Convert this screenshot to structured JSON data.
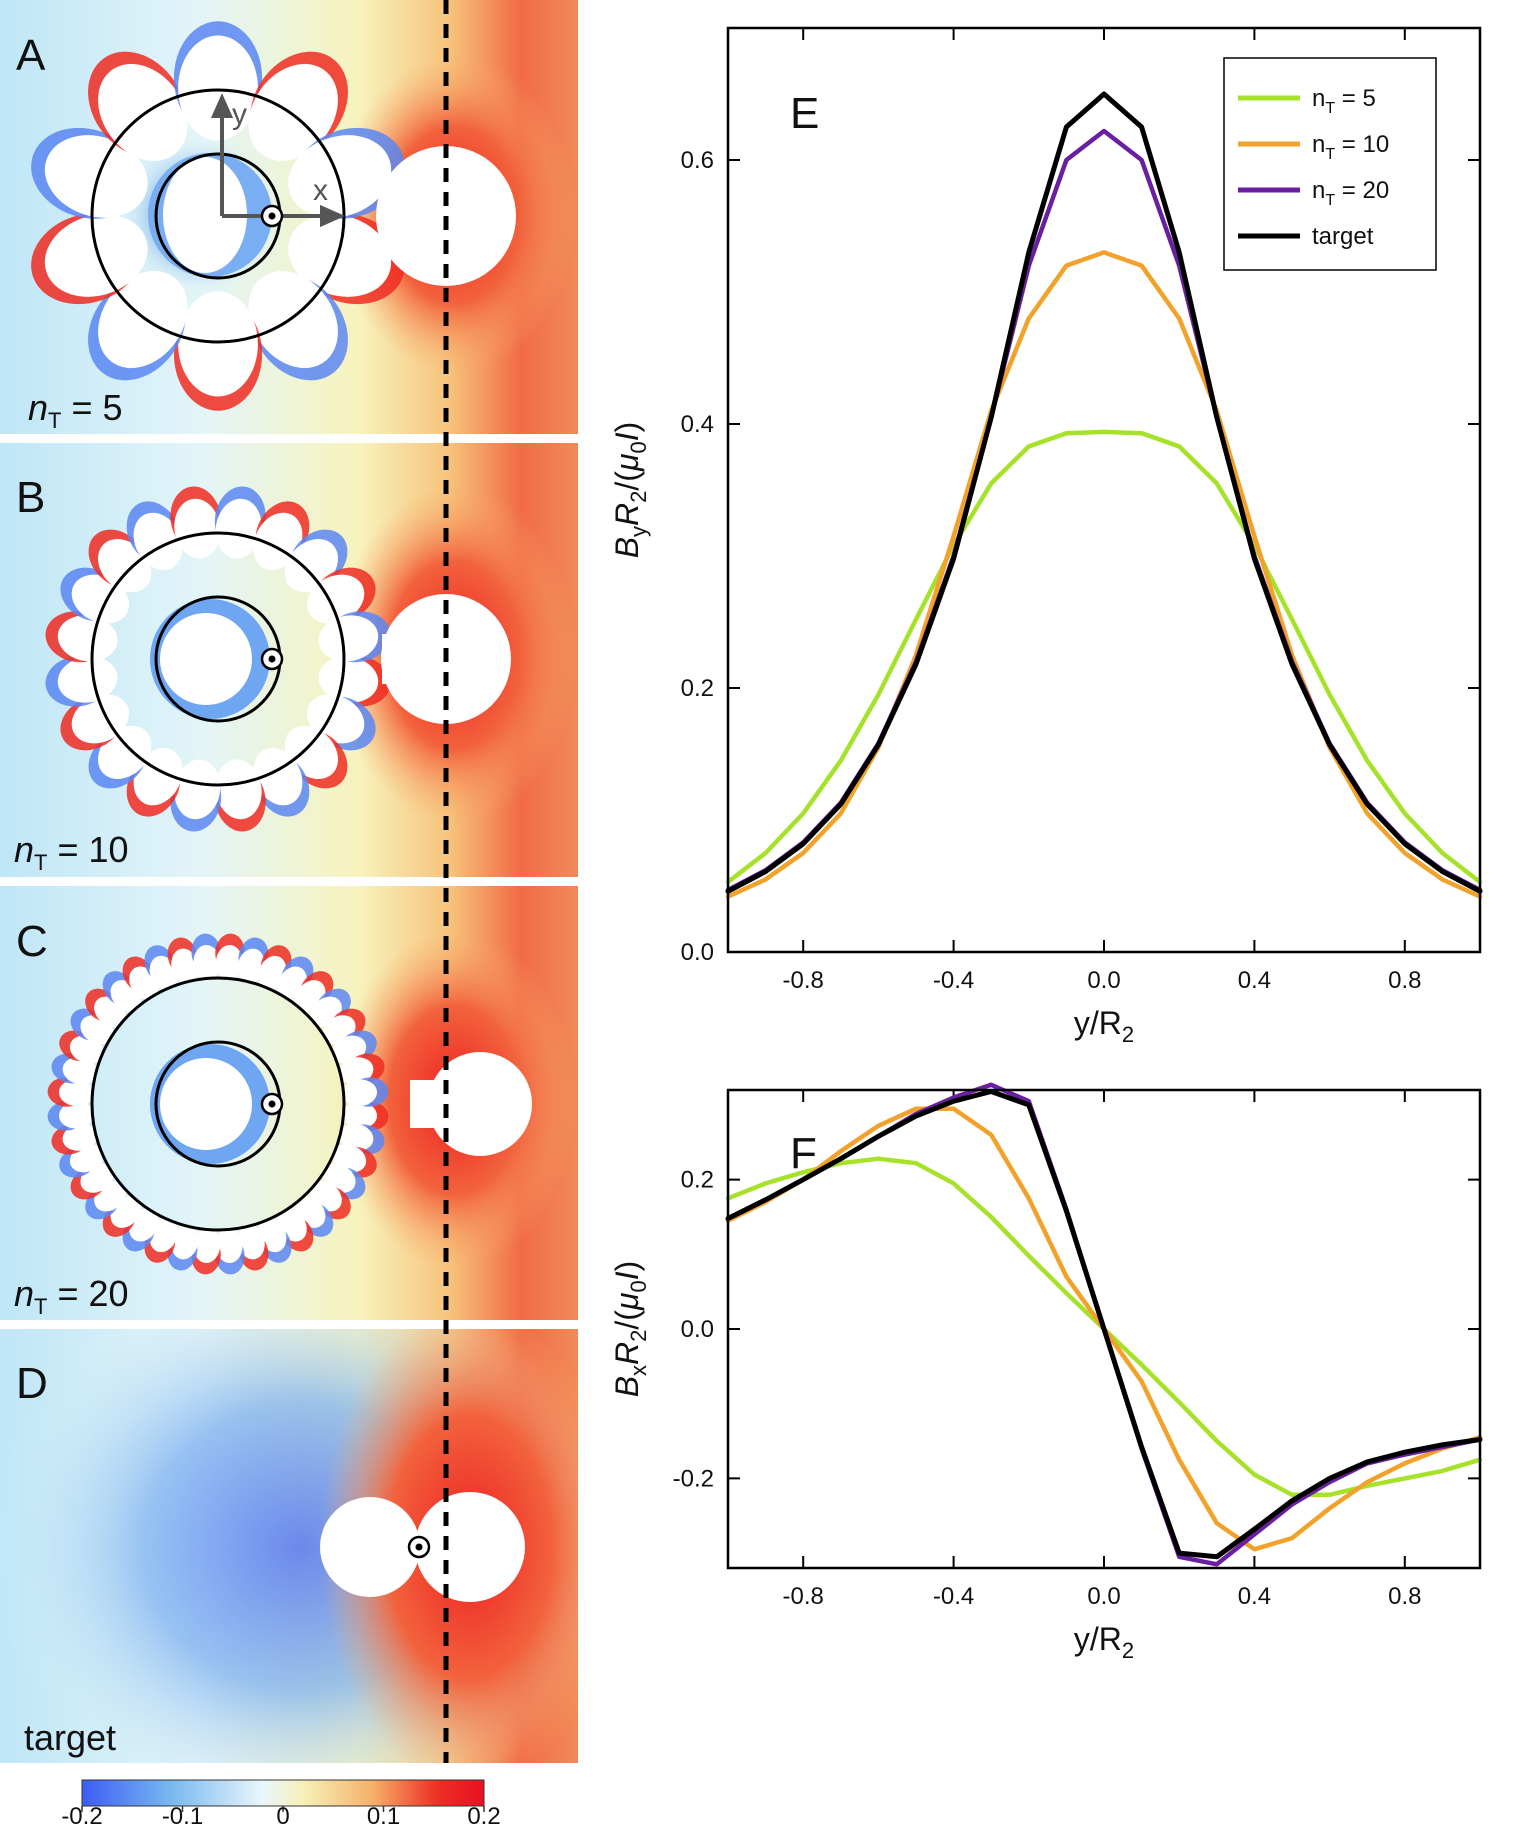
{
  "panels_left": [
    {
      "letter": "A",
      "n_prefix": "n",
      "n_sub": "T",
      "n_value": " = 5",
      "teeth": 5
    },
    {
      "letter": "B",
      "n_prefix": "n",
      "n_sub": "T",
      "n_value": " = 10",
      "teeth": 10
    },
    {
      "letter": "C",
      "n_prefix": "n",
      "n_sub": "T",
      "n_value": " = 20",
      "teeth": 20
    },
    {
      "letter": "D",
      "label": "target",
      "teeth": 0
    }
  ],
  "axes_glyphs": {
    "x": "x",
    "y": "y"
  },
  "colorbar": {
    "ticks": [
      "-0.2",
      "-0.1",
      "0",
      "0.1",
      "0.2"
    ],
    "range": [
      -0.2,
      0.2
    ],
    "colors": [
      "#3d5cf5",
      "#77b8f0",
      "#e9f7fb",
      "#f6f0b8",
      "#f6b26b",
      "#ee3125",
      "#e81020"
    ]
  },
  "chart_data": [
    {
      "type": "line",
      "panel": "E",
      "xlabel": "y/R2",
      "ylabel_parts": {
        "b": "B",
        "bsub": "y",
        "r": "R",
        "rsub": "2",
        "rest1": "/(",
        "mu": "μ",
        "musub": "0",
        "I": "I",
        "rest2": ")"
      },
      "xlim": [
        -1.0,
        1.0
      ],
      "ylim": [
        0.0,
        0.7
      ],
      "xticks": [
        -0.8,
        -0.4,
        0.0,
        0.4,
        0.8
      ],
      "xtick_labels": [
        "-0.8",
        "-0.4",
        "0.0",
        "0.4",
        "0.8"
      ],
      "yticks": [
        0.0,
        0.2,
        0.4,
        0.6
      ],
      "ytick_labels": [
        "0.0",
        "0.2",
        "0.4",
        "0.6"
      ],
      "legend": [
        "n_T = 5",
        "n_T = 10",
        "n_T = 20",
        "target"
      ],
      "legend_parts": [
        {
          "pre": "n",
          "sub": "T",
          "post": " = 5"
        },
        {
          "pre": "n",
          "sub": "T",
          "post": " = 10"
        },
        {
          "pre": "n",
          "sub": "T",
          "post": " = 20"
        },
        {
          "pre": "target",
          "sub": "",
          "post": ""
        }
      ],
      "x": [
        -1.0,
        -0.9,
        -0.8,
        -0.7,
        -0.6,
        -0.5,
        -0.4,
        -0.3,
        -0.2,
        -0.1,
        0.0,
        0.1,
        0.2,
        0.3,
        0.4,
        0.5,
        0.6,
        0.7,
        0.8,
        0.9,
        1.0
      ],
      "series": [
        {
          "name": "n_T = 5",
          "color": "#a6e22a",
          "values": [
            0.053,
            0.075,
            0.105,
            0.145,
            0.195,
            0.252,
            0.308,
            0.355,
            0.383,
            0.393,
            0.394,
            0.393,
            0.383,
            0.355,
            0.308,
            0.252,
            0.195,
            0.145,
            0.105,
            0.075,
            0.053
          ]
        },
        {
          "name": "n_T = 10",
          "color": "#f2a22a",
          "values": [
            0.042,
            0.055,
            0.075,
            0.105,
            0.155,
            0.225,
            0.315,
            0.41,
            0.48,
            0.52,
            0.53,
            0.52,
            0.48,
            0.41,
            0.315,
            0.225,
            0.155,
            0.105,
            0.075,
            0.055,
            0.042
          ]
        },
        {
          "name": "n_T = 20",
          "color": "#6a1fa0",
          "values": [
            0.047,
            0.062,
            0.083,
            0.113,
            0.158,
            0.22,
            0.3,
            0.405,
            0.52,
            0.6,
            0.622,
            0.6,
            0.52,
            0.405,
            0.3,
            0.22,
            0.158,
            0.113,
            0.083,
            0.062,
            0.047
          ]
        },
        {
          "name": "target",
          "color": "#000000",
          "values": [
            0.046,
            0.061,
            0.082,
            0.112,
            0.157,
            0.218,
            0.298,
            0.405,
            0.53,
            0.625,
            0.65,
            0.625,
            0.53,
            0.405,
            0.298,
            0.218,
            0.157,
            0.112,
            0.082,
            0.061,
            0.046
          ]
        }
      ]
    },
    {
      "type": "line",
      "panel": "F",
      "xlabel": "y/R2",
      "ylabel_parts": {
        "b": "B",
        "bsub": "x",
        "r": "R",
        "rsub": "2",
        "rest1": "/(",
        "mu": "μ",
        "musub": "0",
        "I": "I",
        "rest2": ")"
      },
      "xlim": [
        -1.0,
        1.0
      ],
      "ylim": [
        -0.32,
        0.32
      ],
      "xticks": [
        -0.8,
        -0.4,
        0.0,
        0.4,
        0.8
      ],
      "xtick_labels": [
        "-0.8",
        "-0.4",
        "0.0",
        "0.4",
        "0.8"
      ],
      "yticks": [
        -0.2,
        0.0,
        0.2
      ],
      "ytick_labels": [
        "-0.2",
        "0.0",
        "0.2"
      ],
      "x": [
        -1.0,
        -0.9,
        -0.8,
        -0.7,
        -0.6,
        -0.5,
        -0.4,
        -0.3,
        -0.2,
        -0.1,
        0.0,
        0.1,
        0.2,
        0.3,
        0.4,
        0.5,
        0.6,
        0.7,
        0.8,
        0.9,
        1.0
      ],
      "series": [
        {
          "name": "n_T = 5",
          "color": "#a6e22a",
          "values": [
            0.175,
            0.195,
            0.21,
            0.222,
            0.228,
            0.222,
            0.195,
            0.15,
            0.098,
            0.048,
            0.0,
            -0.048,
            -0.098,
            -0.15,
            -0.195,
            -0.222,
            -0.222,
            -0.21,
            -0.2,
            -0.19,
            -0.175
          ]
        },
        {
          "name": "n_T = 10",
          "color": "#f2a22a",
          "values": [
            0.145,
            0.17,
            0.2,
            0.238,
            0.272,
            0.295,
            0.295,
            0.26,
            0.175,
            0.07,
            0.0,
            -0.07,
            -0.175,
            -0.26,
            -0.295,
            -0.28,
            -0.24,
            -0.205,
            -0.18,
            -0.16,
            -0.145
          ]
        },
        {
          "name": "n_T = 20",
          "color": "#6a1fa0",
          "values": [
            0.148,
            0.173,
            0.2,
            0.228,
            0.258,
            0.288,
            0.31,
            0.327,
            0.305,
            0.16,
            0.0,
            -0.16,
            -0.305,
            -0.315,
            -0.275,
            -0.235,
            -0.205,
            -0.18,
            -0.168,
            -0.158,
            -0.148
          ]
        },
        {
          "name": "target",
          "color": "#000000",
          "values": [
            0.148,
            0.173,
            0.2,
            0.228,
            0.258,
            0.285,
            0.305,
            0.318,
            0.3,
            0.158,
            0.0,
            -0.158,
            -0.3,
            -0.305,
            -0.268,
            -0.23,
            -0.2,
            -0.178,
            -0.165,
            -0.155,
            -0.148
          ]
        }
      ]
    }
  ]
}
